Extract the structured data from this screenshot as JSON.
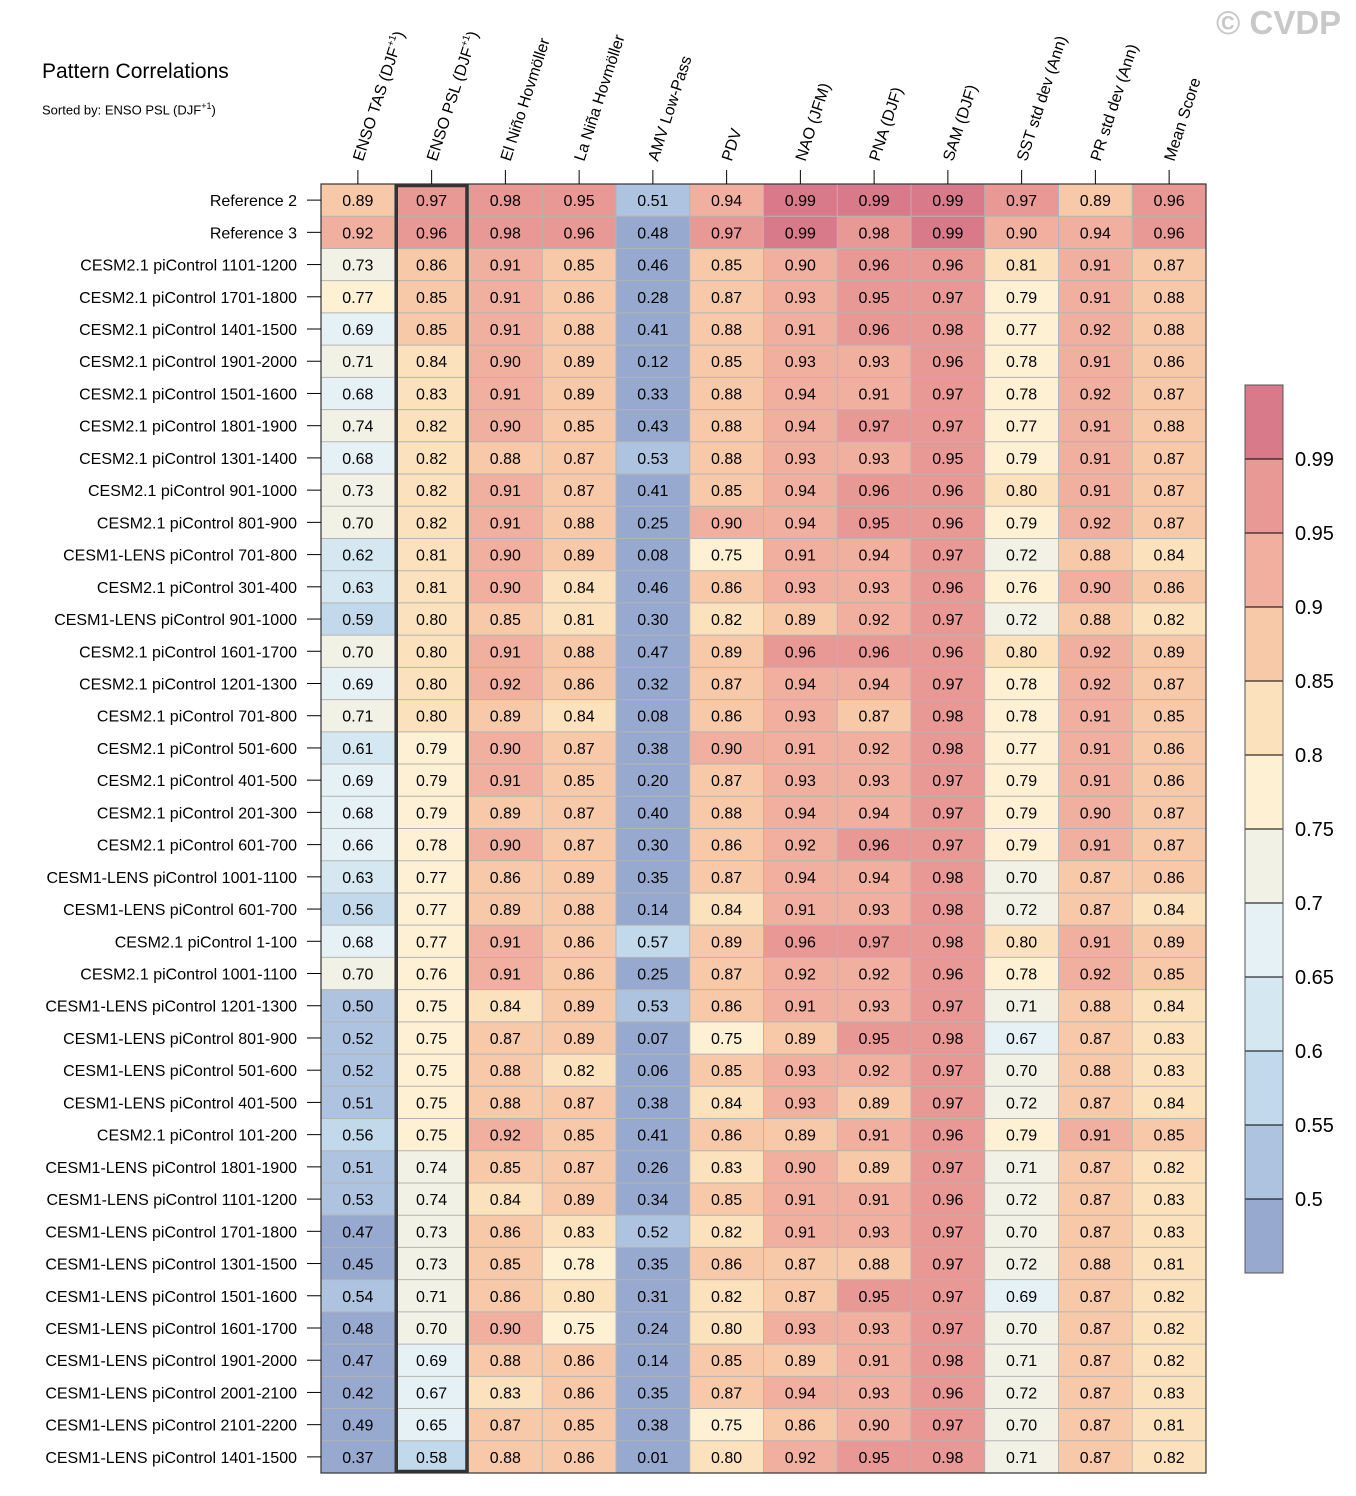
{
  "header": {
    "title": "Pattern Correlations",
    "subtitle_prefix": "Sorted by: ENSO PSL (DJF",
    "subtitle_sup": "+1",
    "subtitle_suffix": ")",
    "watermark": "© CVDP"
  },
  "chart_data": {
    "type": "heatmap",
    "columns": [
      {
        "text": "ENSO TAS (DJF",
        "sup": "+1",
        "suffix": ")"
      },
      {
        "text": "ENSO PSL (DJF",
        "sup": "+1",
        "suffix": ")"
      },
      {
        "text": "El Niño Hovmöller",
        "sup": "",
        "suffix": ""
      },
      {
        "text": "La Niña Hovmöller",
        "sup": "",
        "suffix": ""
      },
      {
        "text": "AMV Low-Pass",
        "sup": "",
        "suffix": ""
      },
      {
        "text": "PDV",
        "sup": "",
        "suffix": ""
      },
      {
        "text": "NAO (JFM)",
        "sup": "",
        "suffix": ""
      },
      {
        "text": "PNA (DJF)",
        "sup": "",
        "suffix": ""
      },
      {
        "text": "SAM (DJF)",
        "sup": "",
        "suffix": ""
      },
      {
        "text": "SST std dev (Ann)",
        "sup": "",
        "suffix": ""
      },
      {
        "text": "PR std dev (Ann)",
        "sup": "",
        "suffix": ""
      },
      {
        "text": "Mean Score",
        "sup": "",
        "suffix": ""
      }
    ],
    "highlighted_column": 1,
    "rows": [
      "Reference 2",
      "Reference 3",
      "CESM2.1 piControl 1101-1200",
      "CESM2.1 piControl 1701-1800",
      "CESM2.1 piControl 1401-1500",
      "CESM2.1 piControl 1901-2000",
      "CESM2.1 piControl 1501-1600",
      "CESM2.1 piControl 1801-1900",
      "CESM2.1 piControl 1301-1400",
      "CESM2.1 piControl 901-1000",
      "CESM2.1 piControl 801-900",
      "CESM1-LENS piControl 701-800",
      "CESM2.1 piControl 301-400",
      "CESM1-LENS piControl 901-1000",
      "CESM2.1 piControl 1601-1700",
      "CESM2.1 piControl 1201-1300",
      "CESM2.1 piControl 701-800",
      "CESM2.1 piControl 501-600",
      "CESM2.1 piControl 401-500",
      "CESM2.1 piControl 201-300",
      "CESM2.1 piControl 601-700",
      "CESM1-LENS piControl 1001-1100",
      "CESM1-LENS piControl 601-700",
      "CESM2.1 piControl 1-100",
      "CESM2.1 piControl 1001-1100",
      "CESM1-LENS piControl 1201-1300",
      "CESM1-LENS piControl 801-900",
      "CESM1-LENS piControl 501-600",
      "CESM1-LENS piControl 401-500",
      "CESM2.1 piControl 101-200",
      "CESM1-LENS piControl 1801-1900",
      "CESM1-LENS piControl 1101-1200",
      "CESM1-LENS piControl 1701-1800",
      "CESM1-LENS piControl 1301-1500",
      "CESM1-LENS piControl 1501-1600",
      "CESM1-LENS piControl 1601-1700",
      "CESM1-LENS piControl 1901-2000",
      "CESM1-LENS piControl 2001-2100",
      "CESM1-LENS piControl 2101-2200",
      "CESM1-LENS piControl 1401-1500"
    ],
    "values": [
      [
        "0.89",
        "0.97",
        "0.98",
        "0.95",
        "0.51",
        "0.94",
        "0.99",
        "0.99",
        "0.99",
        "0.97",
        "0.89",
        "0.96"
      ],
      [
        "0.92",
        "0.96",
        "0.98",
        "0.96",
        "0.48",
        "0.97",
        "0.99",
        "0.98",
        "0.99",
        "0.90",
        "0.94",
        "0.96"
      ],
      [
        "0.73",
        "0.86",
        "0.91",
        "0.85",
        "0.46",
        "0.85",
        "0.90",
        "0.96",
        "0.96",
        "0.81",
        "0.91",
        "0.87"
      ],
      [
        "0.77",
        "0.85",
        "0.91",
        "0.86",
        "0.28",
        "0.87",
        "0.93",
        "0.95",
        "0.97",
        "0.79",
        "0.91",
        "0.88"
      ],
      [
        "0.69",
        "0.85",
        "0.91",
        "0.88",
        "0.41",
        "0.88",
        "0.91",
        "0.96",
        "0.98",
        "0.77",
        "0.92",
        "0.88"
      ],
      [
        "0.71",
        "0.84",
        "0.90",
        "0.89",
        "0.12",
        "0.85",
        "0.93",
        "0.93",
        "0.96",
        "0.78",
        "0.91",
        "0.86"
      ],
      [
        "0.68",
        "0.83",
        "0.91",
        "0.89",
        "0.33",
        "0.88",
        "0.94",
        "0.91",
        "0.97",
        "0.78",
        "0.92",
        "0.87"
      ],
      [
        "0.74",
        "0.82",
        "0.90",
        "0.85",
        "0.43",
        "0.88",
        "0.94",
        "0.97",
        "0.97",
        "0.77",
        "0.91",
        "0.88"
      ],
      [
        "0.68",
        "0.82",
        "0.88",
        "0.87",
        "0.53",
        "0.88",
        "0.93",
        "0.93",
        "0.95",
        "0.79",
        "0.91",
        "0.87"
      ],
      [
        "0.73",
        "0.82",
        "0.91",
        "0.87",
        "0.41",
        "0.85",
        "0.94",
        "0.96",
        "0.96",
        "0.80",
        "0.91",
        "0.87"
      ],
      [
        "0.70",
        "0.82",
        "0.91",
        "0.88",
        "0.25",
        "0.90",
        "0.94",
        "0.95",
        "0.96",
        "0.79",
        "0.92",
        "0.87"
      ],
      [
        "0.62",
        "0.81",
        "0.90",
        "0.89",
        "0.08",
        "0.75",
        "0.91",
        "0.94",
        "0.97",
        "0.72",
        "0.88",
        "0.84"
      ],
      [
        "0.63",
        "0.81",
        "0.90",
        "0.84",
        "0.46",
        "0.86",
        "0.93",
        "0.93",
        "0.96",
        "0.76",
        "0.90",
        "0.86"
      ],
      [
        "0.59",
        "0.80",
        "0.85",
        "0.81",
        "0.30",
        "0.82",
        "0.89",
        "0.92",
        "0.97",
        "0.72",
        "0.88",
        "0.82"
      ],
      [
        "0.70",
        "0.80",
        "0.91",
        "0.88",
        "0.47",
        "0.89",
        "0.96",
        "0.96",
        "0.96",
        "0.80",
        "0.92",
        "0.89"
      ],
      [
        "0.69",
        "0.80",
        "0.92",
        "0.86",
        "0.32",
        "0.87",
        "0.94",
        "0.94",
        "0.97",
        "0.78",
        "0.92",
        "0.87"
      ],
      [
        "0.71",
        "0.80",
        "0.89",
        "0.84",
        "0.08",
        "0.86",
        "0.93",
        "0.87",
        "0.98",
        "0.78",
        "0.91",
        "0.85"
      ],
      [
        "0.61",
        "0.79",
        "0.90",
        "0.87",
        "0.38",
        "0.90",
        "0.91",
        "0.92",
        "0.98",
        "0.77",
        "0.91",
        "0.86"
      ],
      [
        "0.69",
        "0.79",
        "0.91",
        "0.85",
        "0.20",
        "0.87",
        "0.93",
        "0.93",
        "0.97",
        "0.79",
        "0.91",
        "0.86"
      ],
      [
        "0.68",
        "0.79",
        "0.89",
        "0.87",
        "0.40",
        "0.88",
        "0.94",
        "0.94",
        "0.97",
        "0.79",
        "0.90",
        "0.87"
      ],
      [
        "0.66",
        "0.78",
        "0.90",
        "0.87",
        "0.30",
        "0.86",
        "0.92",
        "0.96",
        "0.97",
        "0.79",
        "0.91",
        "0.87"
      ],
      [
        "0.63",
        "0.77",
        "0.86",
        "0.89",
        "0.35",
        "0.87",
        "0.94",
        "0.94",
        "0.98",
        "0.70",
        "0.87",
        "0.86"
      ],
      [
        "0.56",
        "0.77",
        "0.89",
        "0.88",
        "0.14",
        "0.84",
        "0.91",
        "0.93",
        "0.98",
        "0.72",
        "0.87",
        "0.84"
      ],
      [
        "0.68",
        "0.77",
        "0.91",
        "0.86",
        "0.57",
        "0.89",
        "0.96",
        "0.97",
        "0.98",
        "0.80",
        "0.91",
        "0.89"
      ],
      [
        "0.70",
        "0.76",
        "0.91",
        "0.86",
        "0.25",
        "0.87",
        "0.92",
        "0.92",
        "0.96",
        "0.78",
        "0.92",
        "0.85"
      ],
      [
        "0.50",
        "0.75",
        "0.84",
        "0.89",
        "0.53",
        "0.86",
        "0.91",
        "0.93",
        "0.97",
        "0.71",
        "0.88",
        "0.84"
      ],
      [
        "0.52",
        "0.75",
        "0.87",
        "0.89",
        "0.07",
        "0.75",
        "0.89",
        "0.95",
        "0.98",
        "0.67",
        "0.87",
        "0.83"
      ],
      [
        "0.52",
        "0.75",
        "0.88",
        "0.82",
        "0.06",
        "0.85",
        "0.93",
        "0.92",
        "0.97",
        "0.70",
        "0.88",
        "0.83"
      ],
      [
        "0.51",
        "0.75",
        "0.88",
        "0.87",
        "0.38",
        "0.84",
        "0.93",
        "0.89",
        "0.97",
        "0.72",
        "0.87",
        "0.84"
      ],
      [
        "0.56",
        "0.75",
        "0.92",
        "0.85",
        "0.41",
        "0.86",
        "0.89",
        "0.91",
        "0.96",
        "0.79",
        "0.91",
        "0.85"
      ],
      [
        "0.51",
        "0.74",
        "0.85",
        "0.87",
        "0.26",
        "0.83",
        "0.90",
        "0.89",
        "0.97",
        "0.71",
        "0.87",
        "0.82"
      ],
      [
        "0.53",
        "0.74",
        "0.84",
        "0.89",
        "0.34",
        "0.85",
        "0.91",
        "0.91",
        "0.96",
        "0.72",
        "0.87",
        "0.83"
      ],
      [
        "0.47",
        "0.73",
        "0.86",
        "0.83",
        "0.52",
        "0.82",
        "0.91",
        "0.93",
        "0.97",
        "0.70",
        "0.87",
        "0.83"
      ],
      [
        "0.45",
        "0.73",
        "0.85",
        "0.78",
        "0.35",
        "0.86",
        "0.87",
        "0.88",
        "0.97",
        "0.72",
        "0.88",
        "0.81"
      ],
      [
        "0.54",
        "0.71",
        "0.86",
        "0.80",
        "0.31",
        "0.82",
        "0.87",
        "0.95",
        "0.97",
        "0.69",
        "0.87",
        "0.82"
      ],
      [
        "0.48",
        "0.70",
        "0.90",
        "0.75",
        "0.24",
        "0.80",
        "0.93",
        "0.93",
        "0.97",
        "0.70",
        "0.87",
        "0.82"
      ],
      [
        "0.47",
        "0.69",
        "0.88",
        "0.86",
        "0.14",
        "0.85",
        "0.89",
        "0.91",
        "0.98",
        "0.71",
        "0.87",
        "0.82"
      ],
      [
        "0.42",
        "0.67",
        "0.83",
        "0.86",
        "0.35",
        "0.87",
        "0.94",
        "0.93",
        "0.96",
        "0.72",
        "0.87",
        "0.83"
      ],
      [
        "0.49",
        "0.65",
        "0.87",
        "0.85",
        "0.38",
        "0.75",
        "0.86",
        "0.90",
        "0.97",
        "0.70",
        "0.87",
        "0.81"
      ],
      [
        "0.37",
        "0.58",
        "0.88",
        "0.86",
        "0.01",
        "0.80",
        "0.92",
        "0.95",
        "0.98",
        "0.71",
        "0.87",
        "0.82"
      ]
    ],
    "levels": [
      0.5,
      0.55,
      0.6,
      0.65,
      0.7,
      0.75,
      0.8,
      0.85,
      0.9,
      0.95,
      0.99
    ],
    "level_labels": [
      "0.5",
      "0.55",
      "0.6",
      "0.65",
      "0.7",
      "0.75",
      "0.8",
      "0.85",
      "0.9",
      "0.95",
      "0.99"
    ],
    "colors": [
      "#98a9cf",
      "#adc3df",
      "#c1d9eb",
      "#d5e8f2",
      "#e6f1f6",
      "#f2f1e6",
      "#fdf0d3",
      "#fbe1bc",
      "#f8c9a8",
      "#f1b09f",
      "#e89895",
      "#d87a8a"
    ]
  }
}
